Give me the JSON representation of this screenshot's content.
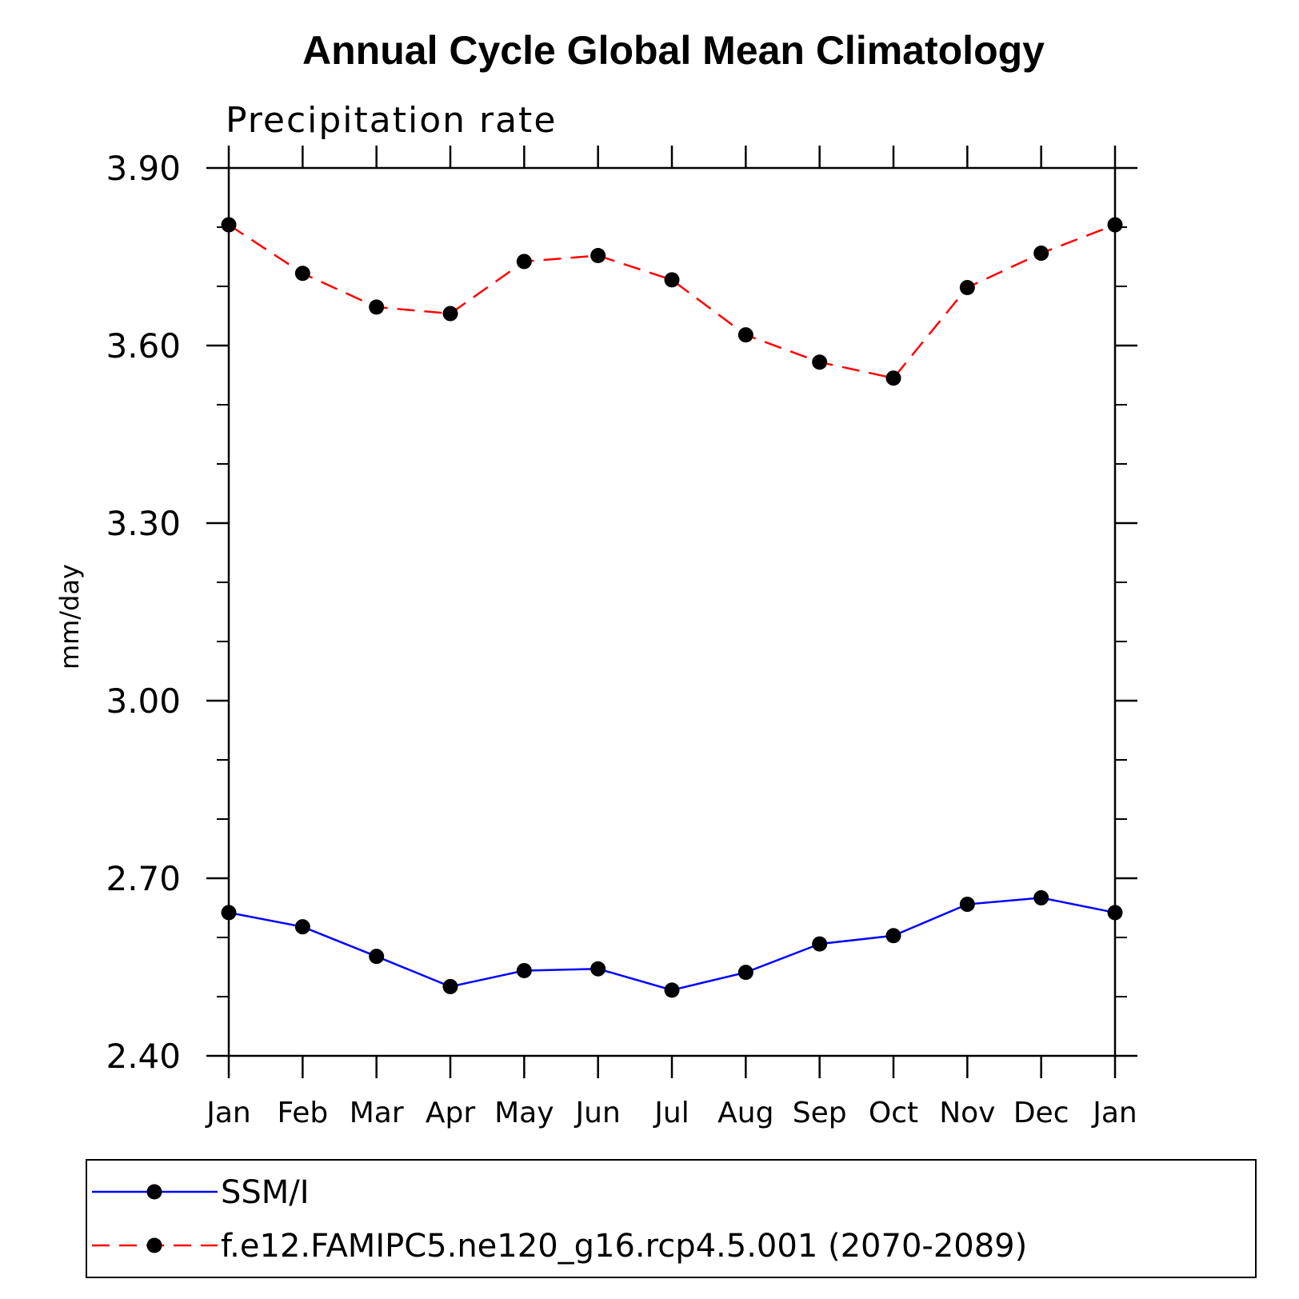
{
  "chart_data": {
    "type": "line",
    "title": "Annual Cycle Global Mean Climatology",
    "subtitle": "Precipitation rate",
    "xlabel": "",
    "ylabel": "mm/day",
    "categories": [
      "Jan",
      "Feb",
      "Mar",
      "Apr",
      "May",
      "Jun",
      "Jul",
      "Aug",
      "Sep",
      "Oct",
      "Nov",
      "Dec",
      "Jan"
    ],
    "ylim": [
      2.4,
      3.9
    ],
    "yticks": [
      "2.40",
      "2.70",
      "3.00",
      "3.30",
      "3.60",
      "3.90"
    ],
    "grid": false,
    "legend_position": "bottom",
    "series": [
      {
        "name": "SSM/I",
        "color": "#0000ff",
        "line_style": "solid",
        "marker": "filled-circle",
        "values": [
          2.642,
          2.618,
          2.568,
          2.517,
          2.544,
          2.547,
          2.511,
          2.541,
          2.589,
          2.603,
          2.656,
          2.667,
          2.642
        ]
      },
      {
        "name": "f.e12.FAMIPC5.ne120_g16.rcp4.5.001 (2070-2089)",
        "color": "#ff0000",
        "line_style": "dashed",
        "marker": "filled-circle",
        "values": [
          3.804,
          3.722,
          3.665,
          3.654,
          3.742,
          3.752,
          3.711,
          3.618,
          3.572,
          3.545,
          3.698,
          3.756,
          3.804
        ]
      }
    ]
  }
}
